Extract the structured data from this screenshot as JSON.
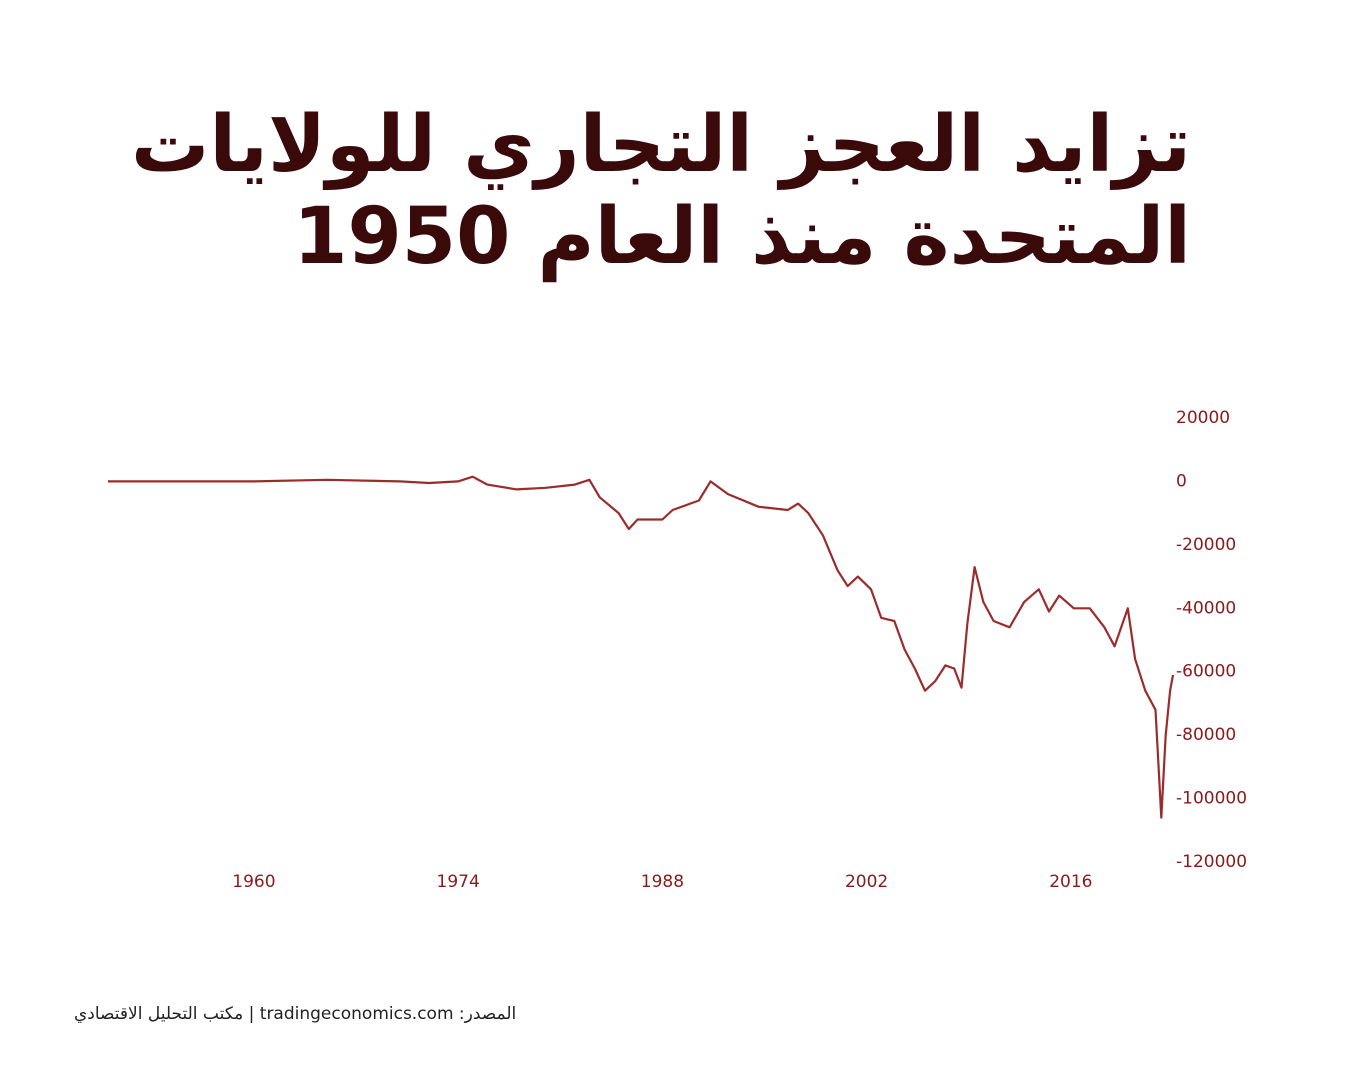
{
  "chart_data": {
    "type": "line",
    "title": [
      "تزايد العجز التجاري للولايات",
      "المتحدة منذ العام 1950"
    ],
    "source": "المصدر: tradingeconomics.com | مكتب التحليل الاقتصادي",
    "xlim": [
      1950,
      2023
    ],
    "xticks": [
      1960,
      1974,
      1988,
      2002,
      2016
    ],
    "ylim": [
      -120000,
      20000
    ],
    "yticks": [
      20000,
      0,
      -20000,
      -40000,
      -60000,
      -80000,
      -100000,
      -120000
    ],
    "grid": false,
    "series": [
      {
        "color": "#9b2c2c",
        "x": [
          1950,
          1955,
          1960,
          1965,
          1970,
          1972,
          1974,
          1975,
          1976,
          1978,
          1980,
          1982,
          1983,
          1983.7,
          1985,
          1985.7,
          1986.3,
          1988,
          1988.7,
          1990.5,
          1991.3,
          1992.5,
          1994.6,
          1996.6,
          1997.3,
          1998,
          1999,
          2000,
          2000.7,
          2001.4,
          2002.3,
          2003,
          2003.9,
          2004.6,
          2005.3,
          2006,
          2006.7,
          2007.4,
          2008,
          2008.5,
          2008.9,
          2009.4,
          2010,
          2010.7,
          2011.8,
          2012.8,
          2013.8,
          2014.5,
          2015.2,
          2016.2,
          2017.3,
          2018.3,
          2019,
          2019.9,
          2020.4,
          2021.1,
          2021.8,
          2022.2,
          2022.5,
          2022.8,
          2023
        ],
        "values": [
          0,
          0,
          0,
          500,
          0,
          -500,
          0,
          1500,
          -1000,
          -2500,
          -2000,
          -1000,
          500,
          -5000,
          -10000,
          -15000,
          -12000,
          -12000,
          -9000,
          -6000,
          0,
          -4000,
          -8000,
          -9000,
          -7000,
          -10000,
          -17000,
          -28000,
          -33000,
          -30000,
          -34000,
          -43000,
          -44000,
          -53000,
          -59000,
          -66000,
          -63000,
          -58000,
          -59000,
          -65000,
          -45000,
          -27000,
          -38000,
          -44000,
          -46000,
          -38000,
          -34000,
          -41000,
          -36000,
          -40000,
          -40000,
          -46000,
          -52000,
          -40000,
          -56000,
          -66000,
          -72000,
          -106000,
          -80000,
          -66000,
          -61000
        ]
      }
    ]
  }
}
